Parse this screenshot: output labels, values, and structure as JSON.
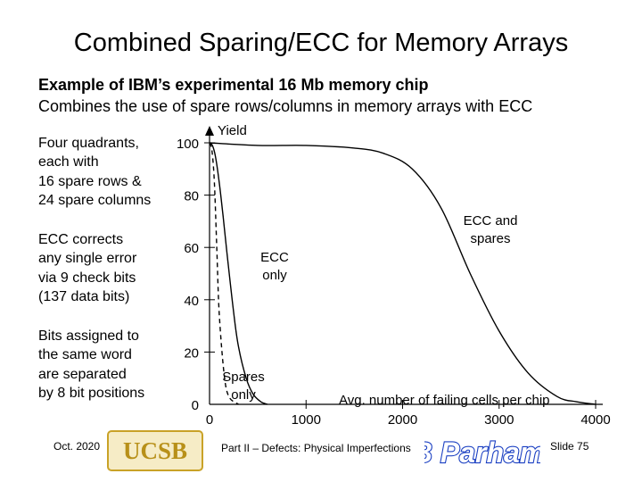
{
  "slide": {
    "title": "Combined Sparing/ECC for Memory Arrays",
    "subtitle_bold": "Example of IBM’s experimental 16 Mb memory chip",
    "subtitle": "Combines the use of spare rows/columns in memory arrays with ECC",
    "notes": [
      "Four quadrants,\neach with\n16 spare rows &\n24 spare columns",
      "ECC corrects\nany single error\nvia 9 check bits\n(137 data bits)",
      "Bits assigned to\nthe same word\nare separated\nby 8 bit positions"
    ]
  },
  "footer": {
    "date": "Oct. 2020",
    "logo_text": "UCSB",
    "part": "Part II – Defects: Physical Imperfections",
    "author_logo": "B Parhami",
    "slide": "Slide 75"
  },
  "colors": {
    "logo_gold": "#c9a227",
    "logo_text": "#b89019",
    "author_blue": "#1a3fc2"
  },
  "chart_data": {
    "type": "line",
    "ylabel": "Yield",
    "xlabel": "Avg. number of failing cells per chip",
    "xlim": [
      0,
      4000
    ],
    "ylim": [
      0,
      100
    ],
    "x_ticks": [
      {
        "value": 0,
        "label": "0"
      },
      {
        "value": 1000,
        "label": "1000"
      },
      {
        "value": 2000,
        "label": "2000"
      },
      {
        "value": 3000,
        "label": "3000"
      },
      {
        "value": 4000,
        "label": "4000"
      }
    ],
    "y_ticks": [
      {
        "value": 0,
        "label": "0"
      },
      {
        "value": 20,
        "label": "20"
      },
      {
        "value": 40,
        "label": "40"
      },
      {
        "value": 60,
        "label": "60"
      },
      {
        "value": 80,
        "label": "80"
      },
      {
        "value": 100,
        "label": "100"
      }
    ],
    "series": [
      {
        "name": "Spares only",
        "style": "dashed",
        "x": [
          0,
          25,
          50,
          75,
          100,
          150,
          200,
          300
        ],
        "y": [
          100,
          97,
          85,
          60,
          35,
          12,
          3,
          0
        ]
      },
      {
        "name": "ECC only",
        "style": "solid",
        "x": [
          0,
          30,
          60,
          100,
          140,
          180,
          250,
          300,
          380,
          450,
          530,
          600
        ],
        "y": [
          100,
          99,
          95,
          85,
          72,
          58,
          35,
          22,
          10,
          4,
          1,
          0
        ]
      },
      {
        "name": "ECC and spares",
        "style": "solid",
        "x": [
          0,
          500,
          1000,
          1500,
          1800,
          2100,
          2400,
          2700,
          3000,
          3300,
          3600,
          3800,
          4000
        ],
        "y": [
          100,
          99,
          99,
          98,
          96,
          90,
          75,
          50,
          28,
          12,
          3,
          1,
          0
        ]
      }
    ],
    "annotations": [
      "Spares\nonly",
      "ECC\nonly",
      "ECC and\nspares"
    ]
  }
}
